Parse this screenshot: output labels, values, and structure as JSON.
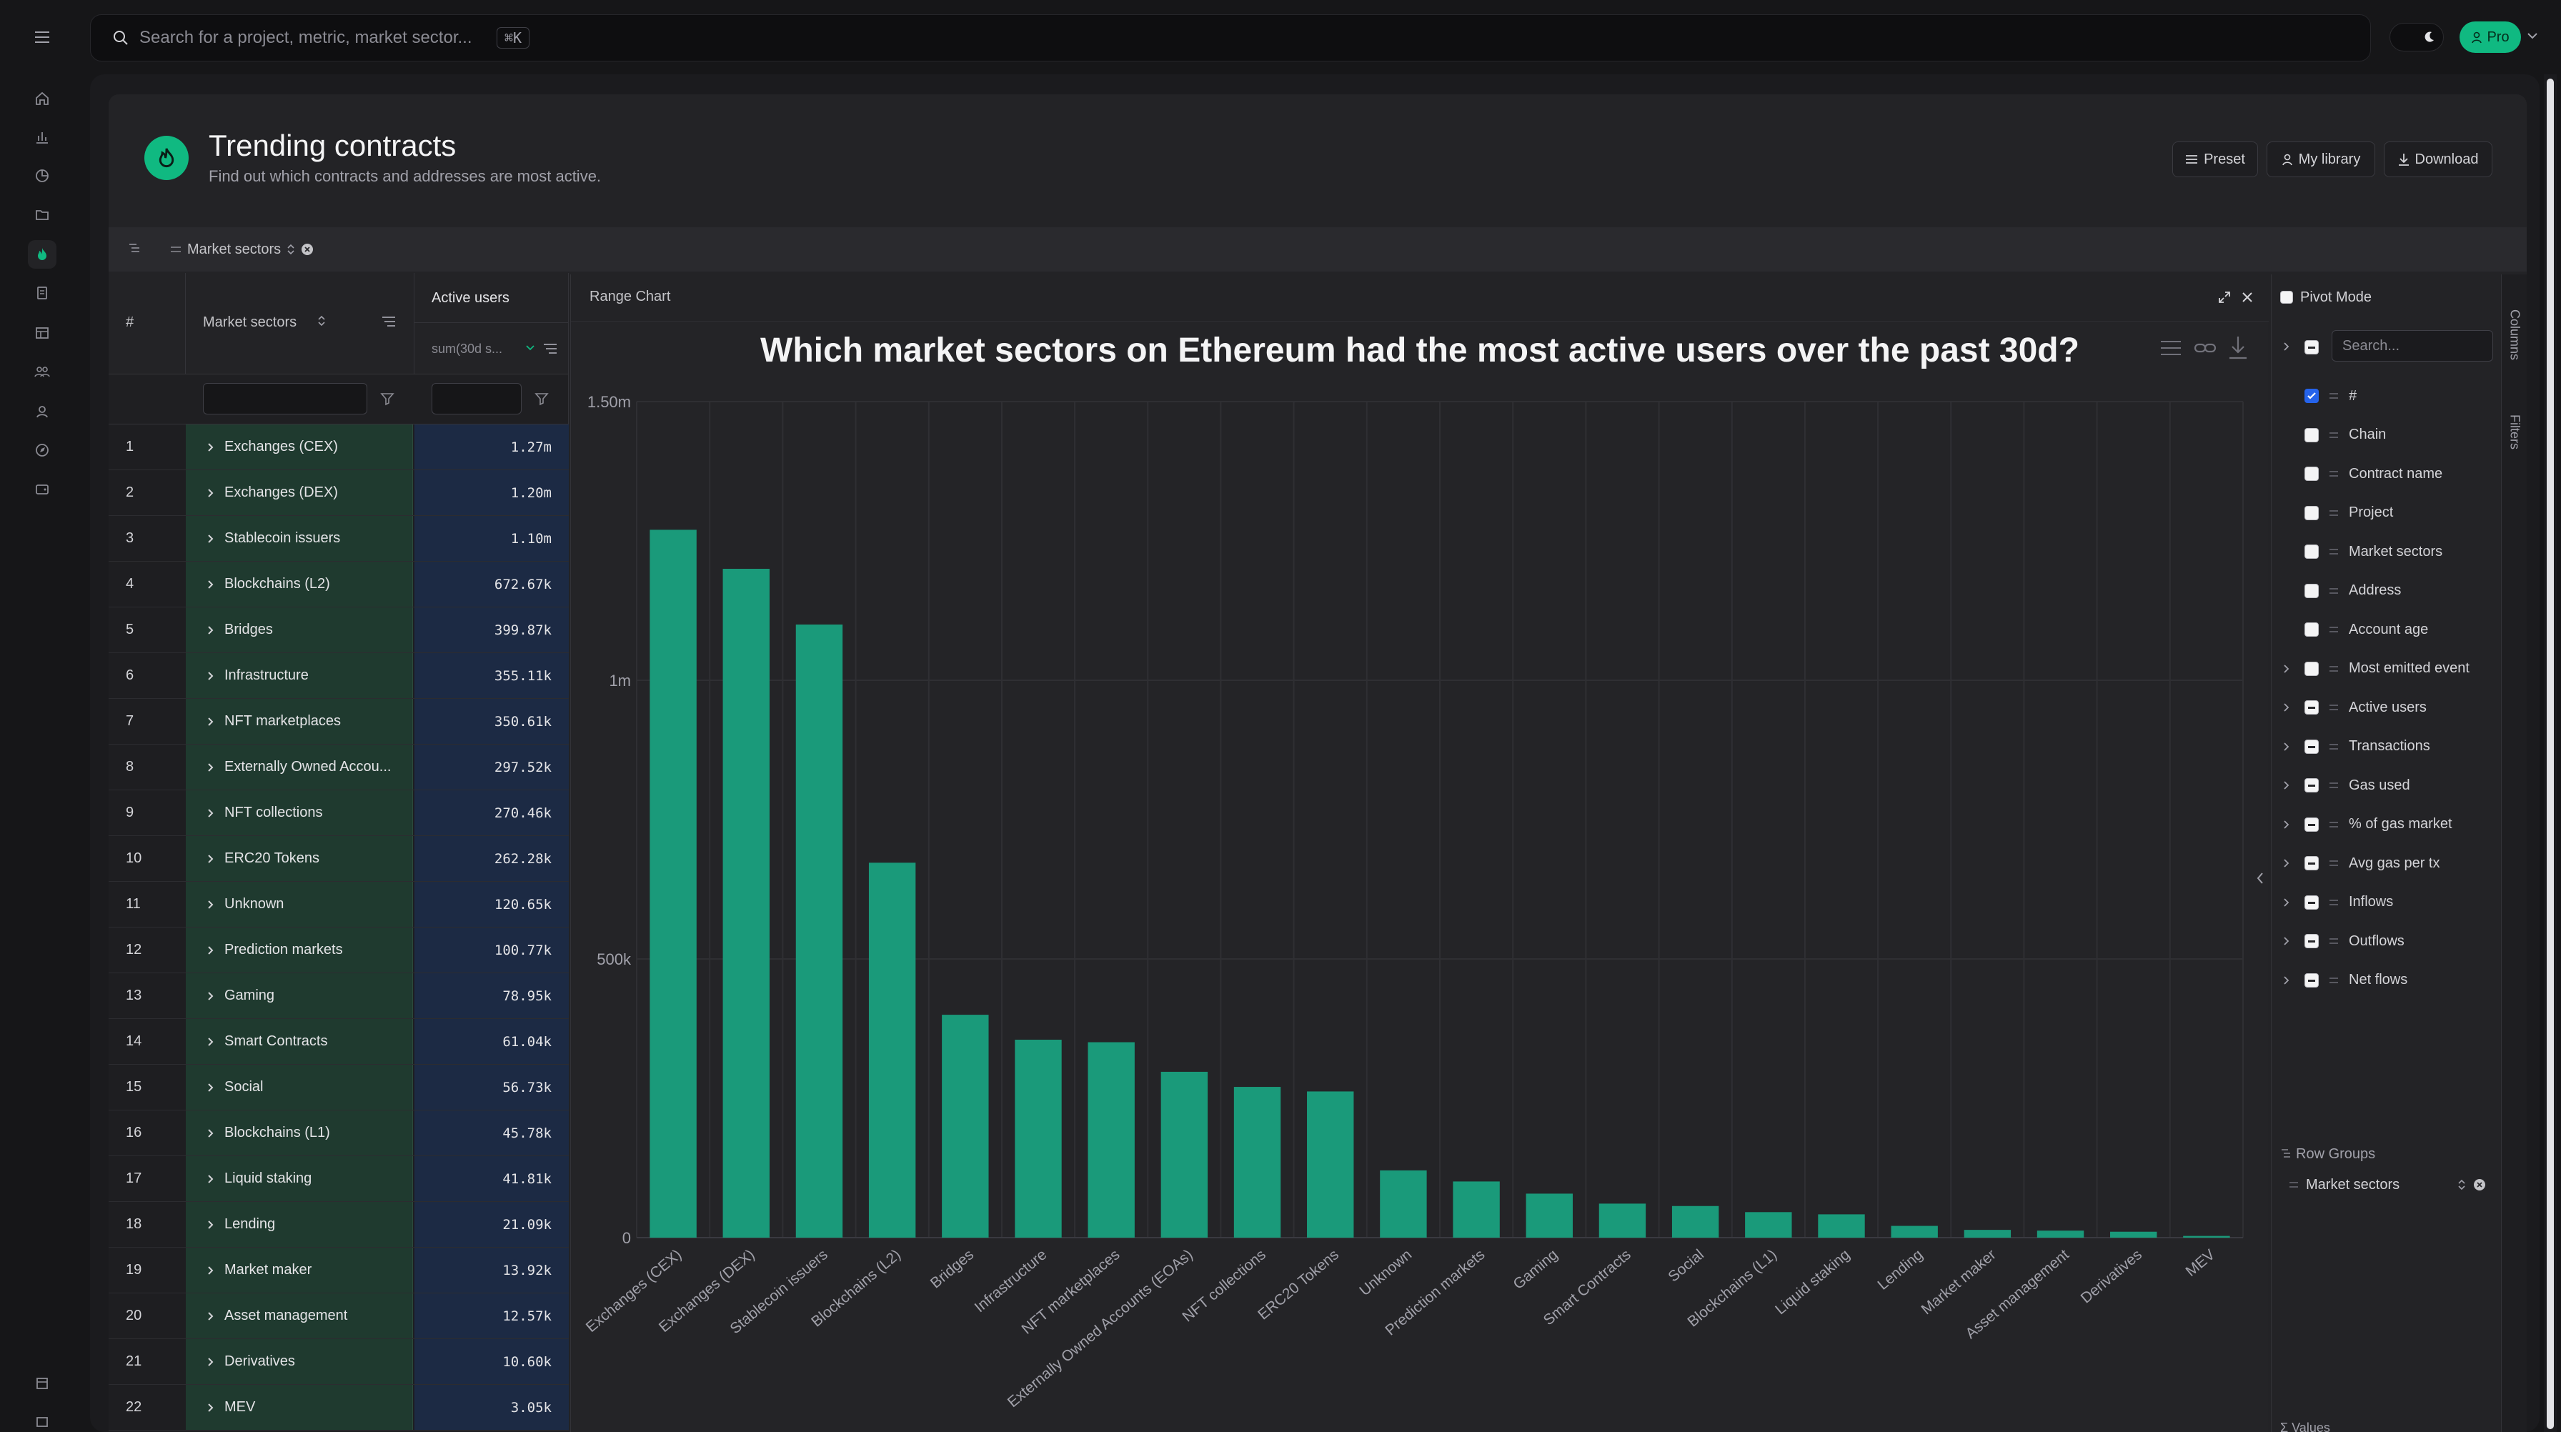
{
  "topbar": {
    "search_placeholder": "Search for a project, metric, market sector...",
    "shortcut": "⌘K",
    "pro_label": "Pro"
  },
  "header": {
    "title": "Trending contracts",
    "subtitle": "Find out which contracts and addresses are most active.",
    "buttons": {
      "preset": "Preset",
      "library": "My library",
      "download": "Download"
    }
  },
  "group_chip": "Market sectors",
  "grid": {
    "headers": {
      "num": "#",
      "sector": "Market sectors",
      "users": "Active users",
      "users_sub": "sum(30d s..."
    },
    "rows": [
      {
        "n": "1",
        "sector": "Exchanges (CEX)",
        "value": "1.27m"
      },
      {
        "n": "2",
        "sector": "Exchanges (DEX)",
        "value": "1.20m"
      },
      {
        "n": "3",
        "sector": "Stablecoin issuers",
        "value": "1.10m"
      },
      {
        "n": "4",
        "sector": "Blockchains (L2)",
        "value": "672.67k"
      },
      {
        "n": "5",
        "sector": "Bridges",
        "value": "399.87k"
      },
      {
        "n": "6",
        "sector": "Infrastructure",
        "value": "355.11k"
      },
      {
        "n": "7",
        "sector": "NFT marketplaces",
        "value": "350.61k"
      },
      {
        "n": "8",
        "sector": "Externally Owned Accou...",
        "value": "297.52k"
      },
      {
        "n": "9",
        "sector": "NFT collections",
        "value": "270.46k"
      },
      {
        "n": "10",
        "sector": "ERC20 Tokens",
        "value": "262.28k"
      },
      {
        "n": "11",
        "sector": "Unknown",
        "value": "120.65k"
      },
      {
        "n": "12",
        "sector": "Prediction markets",
        "value": "100.77k"
      },
      {
        "n": "13",
        "sector": "Gaming",
        "value": "78.95k"
      },
      {
        "n": "14",
        "sector": "Smart Contracts",
        "value": "61.04k"
      },
      {
        "n": "15",
        "sector": "Social",
        "value": "56.73k"
      },
      {
        "n": "16",
        "sector": "Blockchains (L1)",
        "value": "45.78k"
      },
      {
        "n": "17",
        "sector": "Liquid staking",
        "value": "41.81k"
      },
      {
        "n": "18",
        "sector": "Lending",
        "value": "21.09k"
      },
      {
        "n": "19",
        "sector": "Market maker",
        "value": "13.92k"
      },
      {
        "n": "20",
        "sector": "Asset management",
        "value": "12.57k"
      },
      {
        "n": "21",
        "sector": "Derivatives",
        "value": "10.60k"
      },
      {
        "n": "22",
        "sector": "MEV",
        "value": "3.05k"
      }
    ]
  },
  "chart_panel": {
    "name": "Range Chart"
  },
  "chart_data": {
    "type": "bar",
    "title": "Which market sectors on Ethereum had the most active users over the past 30d?",
    "categories": [
      "Exchanges (CEX)",
      "Exchanges (DEX)",
      "Stablecoin issuers",
      "Blockchains (L2)",
      "Bridges",
      "Infrastructure",
      "NFT marketplaces",
      "Externally Owned Accounts (EOAs)",
      "NFT collections",
      "ERC20 Tokens",
      "Unknown",
      "Prediction markets",
      "Gaming",
      "Smart Contracts",
      "Social",
      "Blockchains (L1)",
      "Liquid staking",
      "Lending",
      "Market maker",
      "Asset management",
      "Derivatives",
      "MEV"
    ],
    "values": [
      1270000,
      1200000,
      1100000,
      672670,
      399870,
      355110,
      350610,
      297520,
      270460,
      262280,
      120650,
      100770,
      78950,
      61040,
      56730,
      45780,
      41810,
      21090,
      13920,
      12570,
      10600,
      3050
    ],
    "ylim": [
      0,
      1500000
    ],
    "yticks": [
      0,
      500000,
      1000000,
      1500000
    ],
    "ytick_labels": [
      "0",
      "500k",
      "1m",
      "1.50m"
    ],
    "xlabel": "",
    "ylabel": "",
    "grid": true,
    "bar_color": "#1a9a7a"
  },
  "tool_panel": {
    "pivot_label": "Pivot Mode",
    "search_placeholder": "Search...",
    "columns": [
      {
        "label": "#",
        "state": "checked",
        "expandable": false
      },
      {
        "label": "Chain",
        "state": "unchecked",
        "expandable": false
      },
      {
        "label": "Contract name",
        "state": "unchecked",
        "expandable": false
      },
      {
        "label": "Project",
        "state": "unchecked",
        "expandable": false
      },
      {
        "label": "Market sectors",
        "state": "unchecked",
        "expandable": false
      },
      {
        "label": "Address",
        "state": "unchecked",
        "expandable": false
      },
      {
        "label": "Account age",
        "state": "unchecked",
        "expandable": false
      },
      {
        "label": "Most emitted event",
        "state": "unchecked",
        "expandable": true
      },
      {
        "label": "Active users",
        "state": "indeterminate",
        "expandable": true
      },
      {
        "label": "Transactions",
        "state": "indeterminate",
        "expandable": true
      },
      {
        "label": "Gas used",
        "state": "indeterminate",
        "expandable": true
      },
      {
        "label": "% of gas market",
        "state": "indeterminate",
        "expandable": true
      },
      {
        "label": "Avg gas per tx",
        "state": "indeterminate",
        "expandable": true
      },
      {
        "label": "Inflows",
        "state": "indeterminate",
        "expandable": true
      },
      {
        "label": "Outflows",
        "state": "indeterminate",
        "expandable": true
      },
      {
        "label": "Net flows",
        "state": "indeterminate",
        "expandable": true
      }
    ],
    "row_groups_label": "Row Groups",
    "row_group_item": "Market sectors",
    "values_label": "Values"
  },
  "side_tabs": {
    "columns": "Columns",
    "filters": "Filters"
  },
  "icons": {
    "rail": [
      "home-icon",
      "bar-chart-icon",
      "pie-chart-icon",
      "folder-icon",
      "flame-icon",
      "document-icon",
      "table-icon",
      "users-icon",
      "user-icon",
      "compass-icon",
      "wallet-icon"
    ],
    "accent": "#10b981"
  }
}
